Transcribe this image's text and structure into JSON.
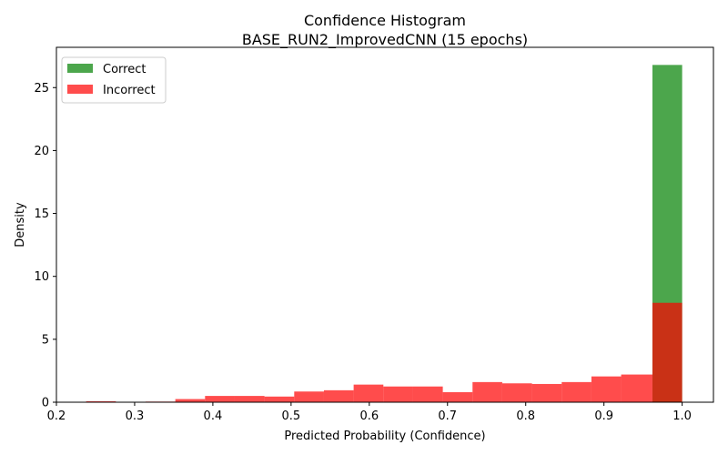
{
  "chart_data": {
    "type": "bar",
    "title": "Confidence Histogram",
    "subtitle": "BASE_RUN2_ImprovedCNN (15 epochs)",
    "xlabel": "Predicted Probability (Confidence)",
    "ylabel": "Density",
    "xlim": [
      0.2,
      1.04
    ],
    "ylim": [
      0,
      28.2
    ],
    "x_ticks": [
      0.2,
      0.3,
      0.4,
      0.5,
      0.6,
      0.7,
      0.8,
      0.9,
      1.0
    ],
    "x_tick_labels": [
      "0.2",
      "0.3",
      "0.4",
      "0.5",
      "0.6",
      "0.7",
      "0.8",
      "0.9",
      "1.0"
    ],
    "y_ticks": [
      0,
      5,
      10,
      15,
      20,
      25
    ],
    "y_tick_labels": [
      "0",
      "5",
      "10",
      "15",
      "20",
      "25"
    ],
    "grid": false,
    "legend_position": "top-left",
    "series": [
      {
        "name": "Correct",
        "color": "#008000",
        "opacity": 0.7,
        "bins": [
          [
            0.962,
            1.0,
            26.8
          ]
        ]
      },
      {
        "name": "Incorrect",
        "color": "#ff0000",
        "opacity": 0.7,
        "bins": [
          [
            0.238,
            0.276,
            0.08
          ],
          [
            0.276,
            0.314,
            0.0
          ],
          [
            0.314,
            0.352,
            0.05
          ],
          [
            0.352,
            0.39,
            0.25
          ],
          [
            0.39,
            0.428,
            0.5
          ],
          [
            0.428,
            0.466,
            0.5
          ],
          [
            0.466,
            0.504,
            0.45
          ],
          [
            0.504,
            0.542,
            0.85
          ],
          [
            0.542,
            0.58,
            0.95
          ],
          [
            0.58,
            0.618,
            1.4
          ],
          [
            0.618,
            0.656,
            1.25
          ],
          [
            0.656,
            0.694,
            1.25
          ],
          [
            0.694,
            0.732,
            0.8
          ],
          [
            0.732,
            0.77,
            1.6
          ],
          [
            0.77,
            0.808,
            1.5
          ],
          [
            0.808,
            0.846,
            1.45
          ],
          [
            0.846,
            0.884,
            1.6
          ],
          [
            0.884,
            0.922,
            2.05
          ],
          [
            0.922,
            0.962,
            2.2
          ],
          [
            0.962,
            1.0,
            7.9
          ]
        ]
      }
    ]
  }
}
